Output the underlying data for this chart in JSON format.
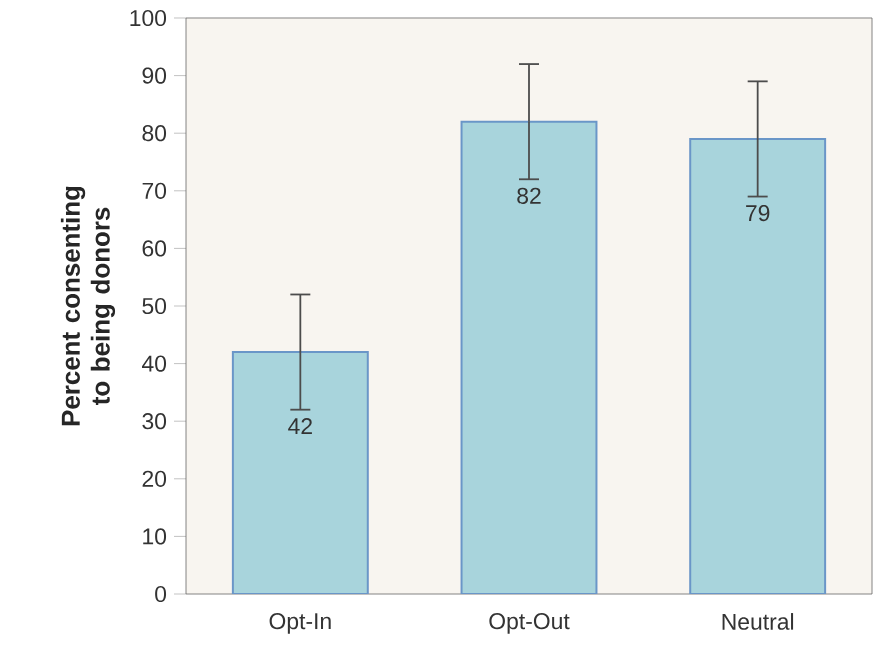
{
  "chart_data": {
    "type": "bar",
    "ylabel": "Percent consenting to being donors",
    "categories": [
      "Opt-In",
      "Opt-Out",
      "Neutral"
    ],
    "values": [
      42,
      82,
      79
    ],
    "errors": [
      10,
      10,
      10
    ],
    "color": "#a8d4dc",
    "ylim": [
      0,
      100
    ],
    "yticks": [
      0,
      10,
      20,
      30,
      40,
      50,
      60,
      70,
      80,
      90,
      100
    ],
    "data_labels": true
  }
}
